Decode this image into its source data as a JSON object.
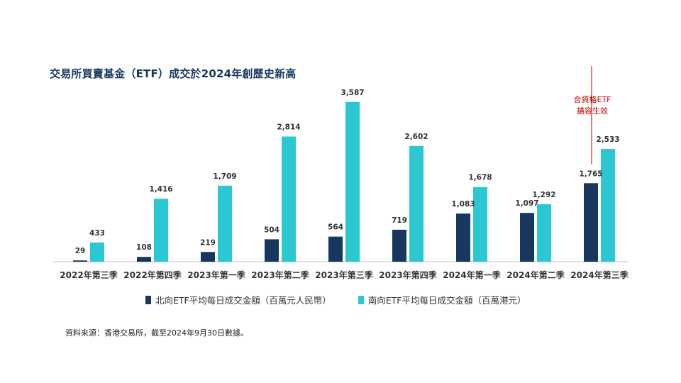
{
  "title": "交易所買賣基金（ETF）成交於2024年創歷史新高",
  "chart_data": {
    "type": "bar",
    "categories": [
      "2022年第三季",
      "2022年第四季",
      "2023年第一季",
      "2023年第二季",
      "2023年第三季",
      "2023年第四季",
      "2024年第一季",
      "2024年第二季",
      "2024年第三季"
    ],
    "series": [
      {
        "name": "北向ETF平均每日成交金額（百萬元人民幣）",
        "color": "#17375e",
        "values": [
          29,
          108,
          219,
          504,
          564,
          719,
          1083,
          1097,
          1765
        ],
        "labels": [
          "29",
          "108",
          "219",
          "504",
          "564",
          "719",
          "1,083",
          "1,097",
          "1,765"
        ]
      },
      {
        "name": "南向ETF平均每日成交金額（百萬港元）",
        "color": "#2bc8d3",
        "values": [
          433,
          1416,
          1709,
          2814,
          3587,
          2602,
          1678,
          1292,
          2533
        ],
        "labels": [
          "433",
          "1,416",
          "1,709",
          "2,814",
          "3,587",
          "2,602",
          "1,678",
          "1,292",
          "2,533"
        ]
      }
    ],
    "ylim": [
      0,
      3587
    ],
    "grid": false,
    "legend": "bottom",
    "annotation": {
      "line1": "合資格ETF",
      "line2": "擴容生效",
      "color": "#c00000"
    }
  },
  "source": "資料來源：香港交易所，截至2024年9月30日數據。"
}
